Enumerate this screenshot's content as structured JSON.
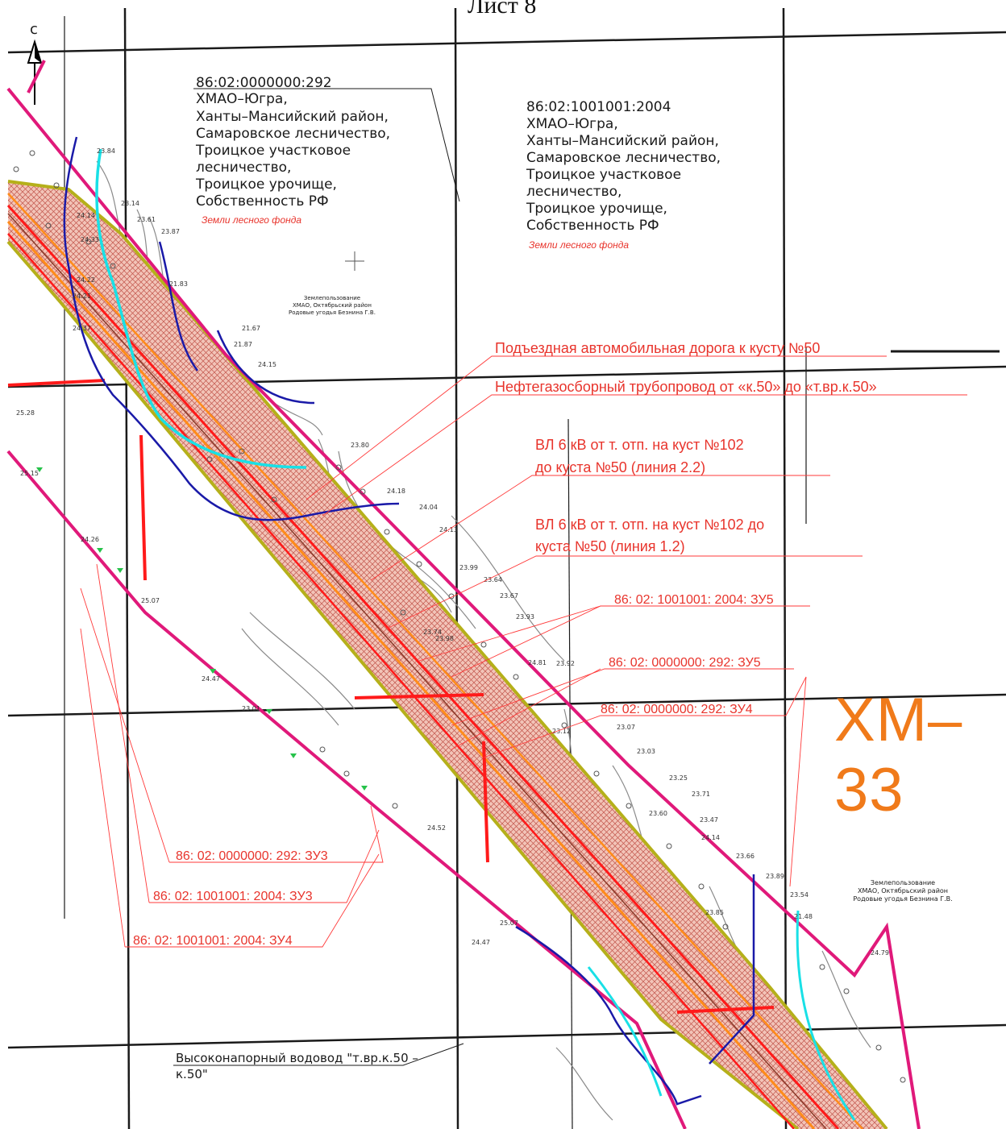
{
  "sheet": {
    "title": "Лист 8",
    "code": "ХМ–33",
    "north_label": "с"
  },
  "parcels": [
    {
      "lines": [
        "86:02:0000000:292",
        "ХМАО–Югра,",
        "Ханты–Мансийский район,",
        "Самаровское лесничество,",
        "Троицкое участковое",
        "лесничество,",
        "Троицкое урочище,",
        "Собственность РФ"
      ],
      "category": "Земли лесного фонда"
    },
    {
      "lines": [
        "86:02:1001001:2004",
        "ХМАО–Югра,",
        "Ханты–Мансийский район,",
        "Самаровское лесничество,",
        "Троицкое участковое",
        "лесничество,",
        "Троицкое урочище,",
        "Собственность РФ"
      ],
      "category": "Земли лесного фонда"
    }
  ],
  "land_user": [
    "Землепользование",
    "ХМАО, Октябрьский район",
    "Родовые угодья Безнина Г.В."
  ],
  "callouts": {
    "road": "Подъездная автомобильная дорога к кусту №50",
    "pipeline": "Нефтегазосборный трубопровод от «к.50» до «т.вр.к.50»",
    "vl22_a": "ВЛ 6 кВ от т. отп. на куст №102",
    "vl22_b": "до куста №50 (линия 2.2)",
    "vl12_a": "ВЛ 6 кВ от т. отп. на куст №102 до",
    "vl12_b": "куста №50 (линия 1.2)",
    "zu_2004_5": "86: 02: 1001001: 2004: ЗУ5",
    "zu_292_5": "86: 02: 0000000: 292: ЗУ5",
    "zu_292_4": "86: 02: 0000000: 292: ЗУ4",
    "zu_292_3": "86: 02: 0000000: 292: ЗУ3",
    "zu_2004_3": "86: 02: 1001001: 2004: ЗУ3",
    "zu_2004_4": "86: 02: 1001001: 2004: ЗУ4",
    "water_a": "Высоконапорный водовод \"т.вр.к.50 –",
    "water_b": "к.50\""
  },
  "spot_heights": [
    "23.84",
    "23.14",
    "23.61",
    "23.87",
    "21.67",
    "21.83",
    "21.87",
    "24.15",
    "24.14",
    "24.33",
    "24.22",
    "24.21",
    "24.37",
    "25.28",
    "25.15",
    "24.26",
    "25.07",
    "24.47",
    "23.01",
    "23.80",
    "24.18",
    "24.04",
    "24.13",
    "23.99",
    "23.64",
    "23.67",
    "23.93",
    "23.98",
    "23.74",
    "23.92",
    "23.07",
    "23.03",
    "23.25",
    "23.71",
    "23.47",
    "24.14",
    "23.66",
    "23.89",
    "23.54",
    "23.85",
    "21.48",
    "24.79",
    "25.07",
    "24.47",
    "23.60",
    "23.12",
    "24.81",
    "24.52"
  ],
  "colors": {
    "grid": "#1a1a1a",
    "boundary": "#e0197a",
    "corridor_edge": "#b5b01a",
    "hatch": "#e9a08f",
    "lines_red": "#ff1a1a",
    "lines_orange": "#ff8c1a",
    "stream_blue": "#1a1aa8",
    "water_cyan": "#19e0e6",
    "contour": "#8a8a8a",
    "text_red": "#e8342c",
    "code_orange": "#f07a1a"
  }
}
